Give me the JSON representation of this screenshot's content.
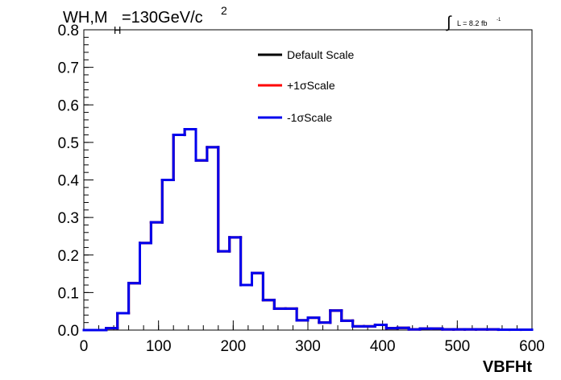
{
  "chart_data": {
    "type": "line",
    "title": {
      "base": "WH,M",
      "subscript": "H",
      "rest": "=130GeV/c",
      "superscript": "2"
    },
    "luminosity": {
      "integral_symbol": "∫",
      "text": "L = 8.2 fb",
      "superscript": "-1"
    },
    "xlabel": "VBFHt",
    "ylabel": "",
    "xlim": [
      0,
      600
    ],
    "ylim": [
      0,
      0.8
    ],
    "x_ticks": [
      "0",
      "100",
      "200",
      "300",
      "400",
      "500",
      "600"
    ],
    "y_ticks": [
      "0.0",
      "0.1",
      "0.2",
      "0.3",
      "0.4",
      "0.5",
      "0.6",
      "0.7",
      "0.8"
    ],
    "grid": false,
    "legend_position": "top-center",
    "bin_edges": [
      0,
      15,
      30,
      45,
      60,
      75,
      90,
      105,
      120,
      135,
      150,
      165,
      180,
      195,
      210,
      225,
      240,
      255,
      270,
      285,
      300,
      315,
      330,
      345,
      360,
      375,
      390,
      405,
      420,
      435,
      450,
      465,
      480,
      495,
      510,
      525,
      540,
      555,
      570,
      585,
      600
    ],
    "series": [
      {
        "name": "Default Scale",
        "color": "#000000",
        "values": [
          0,
          0,
          0.005,
          0.045,
          0.125,
          0.232,
          0.287,
          0.4,
          0.52,
          0.535,
          0.452,
          0.487,
          0.21,
          0.247,
          0.12,
          0.152,
          0.08,
          0.057,
          0.057,
          0.026,
          0.033,
          0.02,
          0.052,
          0.025,
          0.01,
          0.01,
          0.014,
          0.005,
          0.006,
          0.002,
          0.004,
          0.004,
          0.002,
          0.002,
          0.002,
          0.002,
          0.002,
          0.001,
          0.001,
          0.001
        ]
      },
      {
        "name": "+1σScale",
        "color": "#ff0000",
        "values": [
          0,
          0,
          0.005,
          0.045,
          0.125,
          0.232,
          0.287,
          0.4,
          0.52,
          0.535,
          0.452,
          0.487,
          0.21,
          0.247,
          0.12,
          0.152,
          0.08,
          0.057,
          0.057,
          0.026,
          0.033,
          0.02,
          0.052,
          0.025,
          0.01,
          0.01,
          0.014,
          0.005,
          0.006,
          0.002,
          0.004,
          0.004,
          0.002,
          0.002,
          0.002,
          0.002,
          0.002,
          0.001,
          0.001,
          0.001
        ]
      },
      {
        "name": "-1σScale",
        "color": "#0000ee",
        "values": [
          0,
          0,
          0.005,
          0.045,
          0.125,
          0.232,
          0.287,
          0.4,
          0.52,
          0.535,
          0.452,
          0.487,
          0.21,
          0.247,
          0.12,
          0.152,
          0.08,
          0.057,
          0.057,
          0.026,
          0.033,
          0.02,
          0.052,
          0.025,
          0.01,
          0.01,
          0.014,
          0.005,
          0.006,
          0.002,
          0.004,
          0.004,
          0.002,
          0.002,
          0.002,
          0.002,
          0.002,
          0.001,
          0.001,
          0.001
        ]
      }
    ]
  }
}
